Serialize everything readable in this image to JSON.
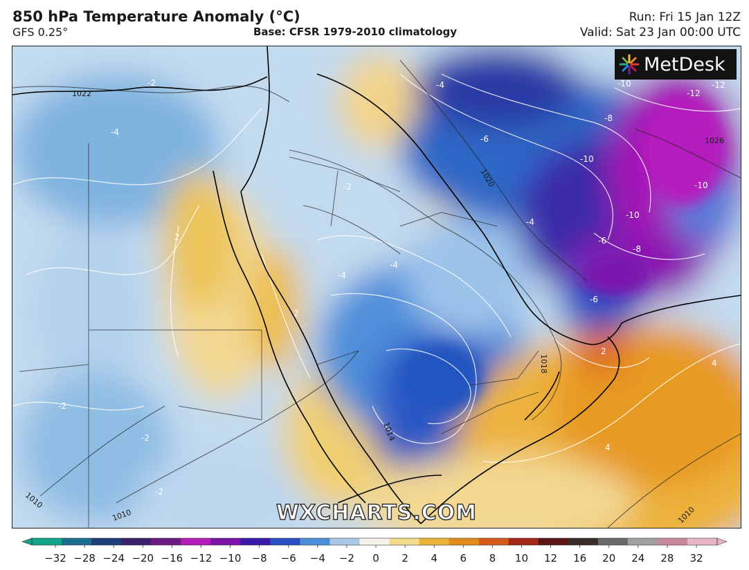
{
  "header": {
    "title": "850 hPa Temperature Anomaly (°C)",
    "model": "GFS 0.25°",
    "base": "Base: CFSR 1979-2010 climatology",
    "run": "Run: Fri 15 Jan 12Z",
    "valid": "Valid: Sat 23 Jan 00:00 UTC"
  },
  "branding": {
    "logo_text": "MetDesk",
    "watermark": "WXCHARTS.COM"
  },
  "map": {
    "contour_labels": [
      "-2",
      "-4",
      "-2",
      "-4",
      "-4",
      "-6",
      "-8",
      "-10",
      "-12",
      "-12",
      "-10",
      "-10",
      "-10",
      "-8",
      "-6",
      "-4",
      "-4",
      "2",
      "2",
      "4",
      "4",
      "-2",
      "-2",
      "-2",
      "2",
      "-6"
    ],
    "isobar_labels": [
      "1022",
      "1026",
      "1018",
      "1014",
      "1010",
      "1010",
      "1010",
      "1020"
    ]
  },
  "colorbar": {
    "ticks": [
      "-32",
      "-28",
      "-24",
      "-20",
      "-16",
      "-12",
      "-10",
      "-8",
      "-6",
      "-4",
      "-2",
      "0",
      "2",
      "4",
      "6",
      "8",
      "10",
      "12",
      "16",
      "20",
      "24",
      "28",
      "32"
    ],
    "colors": [
      "#12a48a",
      "#1b6e8e",
      "#1f3f78",
      "#3a1f6a",
      "#6d1a83",
      "#b21cb7",
      "#7a15a8",
      "#3a1aa6",
      "#2a4fc3",
      "#4a8fd8",
      "#a9c8e6",
      "#f6f3ea",
      "#f2dc8c",
      "#eab33a",
      "#e58a1c",
      "#d65a18",
      "#a2281a",
      "#5a1514",
      "#3a2a2a",
      "#6a6a6a",
      "#a0a0a0",
      "#c88a9a",
      "#e7b6c6"
    ]
  }
}
